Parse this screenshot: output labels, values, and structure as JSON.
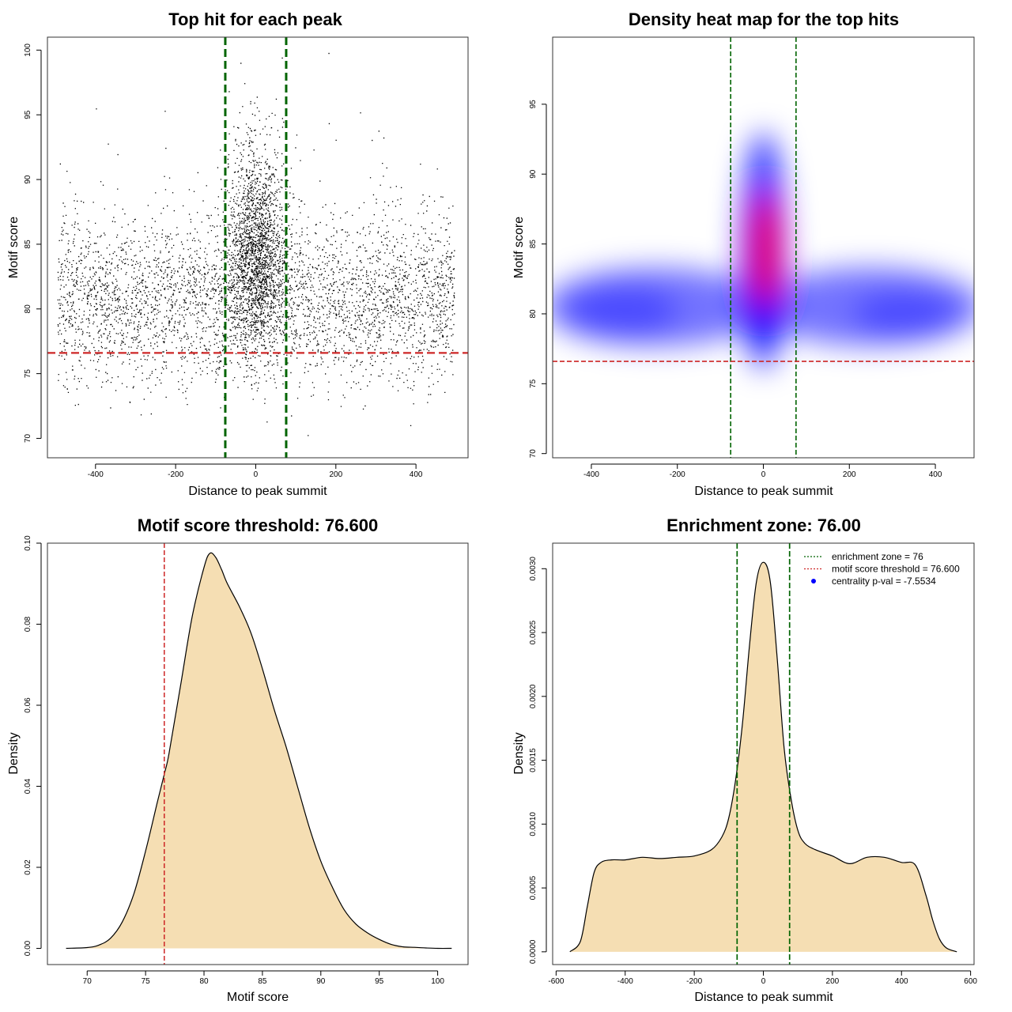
{
  "chart_data": [
    {
      "type": "scatter",
      "title": "Top hit for each peak",
      "xlabel": "Distance to peak summit",
      "ylabel": "Motif score",
      "xlim": [
        -520,
        530
      ],
      "ylim": [
        68.5,
        101
      ],
      "xticks": [
        -400,
        -200,
        0,
        200,
        400
      ],
      "yticks": [
        70,
        75,
        80,
        85,
        90,
        95,
        100
      ],
      "colors": {
        "points": "#000000",
        "zone_lines": "#006400",
        "threshold_line": "#cd2626"
      },
      "vlines": [
        -76,
        76
      ],
      "hline": 76.6,
      "grid": false
    },
    {
      "type": "heatmap",
      "title": "Density heat map for the top hits",
      "xlabel": "Distance to peak summit",
      "ylabel": "Motif score",
      "xlim": [
        -490,
        490
      ],
      "ylim": [
        69.7,
        99.8
      ],
      "xticks": [
        -400,
        -200,
        0,
        200,
        400
      ],
      "yticks": [
        70,
        75,
        80,
        85,
        90,
        95
      ],
      "colors": {
        "low": "#ffffff",
        "mid": "#0000ff",
        "high": "#ff0000",
        "zone_lines": "#006400",
        "threshold_line": "#cd2626"
      },
      "vlines": [
        -76,
        76
      ],
      "hline": 76.6,
      "grid": false
    },
    {
      "type": "area",
      "title": "Motif score threshold: 76.600",
      "xlabel": "Motif score",
      "ylabel": "Density",
      "xlim": [
        66.6,
        102.6
      ],
      "ylim": [
        -0.004,
        0.1
      ],
      "xticks": [
        70,
        75,
        80,
        85,
        90,
        95,
        100
      ],
      "yticks": [
        "0.00",
        "0.02",
        "0.04",
        "0.06",
        "0.08",
        "0.10"
      ],
      "x": [
        68.2,
        70,
        71,
        72,
        73,
        74,
        75,
        76,
        76.6,
        77,
        78,
        79,
        80,
        80.5,
        81,
        81.5,
        82,
        83,
        84,
        85,
        86,
        87,
        88,
        89,
        90,
        91,
        92,
        93,
        94,
        95,
        96,
        97,
        98,
        99,
        100,
        101.2
      ],
      "y": [
        0.0,
        0.0002,
        0.0008,
        0.0025,
        0.0065,
        0.0135,
        0.024,
        0.036,
        0.043,
        0.048,
        0.065,
        0.082,
        0.094,
        0.0975,
        0.0965,
        0.0935,
        0.09,
        0.0845,
        0.078,
        0.069,
        0.059,
        0.05,
        0.04,
        0.03,
        0.0215,
        0.015,
        0.0095,
        0.006,
        0.0038,
        0.0022,
        0.001,
        0.0004,
        0.00025,
        0.0001,
        0.0,
        0.0
      ],
      "vlines": [
        76.6
      ],
      "colors": {
        "fill": "#f5deb3",
        "line": "#000000",
        "threshold_line": "#cd2626"
      },
      "grid": false
    },
    {
      "type": "area",
      "title": "Enrichment zone: 76.00",
      "xlabel": "Distance to peak summit",
      "ylabel": "Density",
      "xlim": [
        -610,
        610
      ],
      "ylim": [
        -0.0001,
        0.0032
      ],
      "xticks": [
        -600,
        -400,
        -200,
        0,
        200,
        400,
        600
      ],
      "yticks": [
        "0.0000",
        "0.0005",
        "0.0010",
        "0.0015",
        "0.0020",
        "0.0025",
        "0.0030"
      ],
      "x": [
        -560,
        -530,
        -510,
        -490,
        -470,
        -440,
        -400,
        -350,
        -300,
        -250,
        -200,
        -150,
        -120,
        -100,
        -80,
        -60,
        -40,
        -20,
        0,
        20,
        40,
        60,
        80,
        100,
        120,
        150,
        200,
        250,
        300,
        350,
        400,
        440,
        470,
        490,
        510,
        530,
        560
      ],
      "y": [
        0.0,
        8e-05,
        0.00035,
        0.00062,
        0.0007,
        0.00072,
        0.00072,
        0.00074,
        0.00073,
        0.00074,
        0.00075,
        0.0008,
        0.0009,
        0.00105,
        0.00135,
        0.0018,
        0.0024,
        0.0029,
        0.00305,
        0.0029,
        0.0023,
        0.0016,
        0.0012,
        0.00095,
        0.00085,
        0.0008,
        0.00075,
        0.00069,
        0.00074,
        0.00074,
        0.0007,
        0.00068,
        0.00045,
        0.00025,
        0.0001,
        3e-05,
        0.0
      ],
      "vlines": [
        -76,
        76
      ],
      "colors": {
        "fill": "#f5deb3",
        "line": "#000000",
        "zone_lines": "#006400"
      },
      "legend": {
        "placement": "top-right",
        "entries": [
          {
            "label": "enrichment zone = 76",
            "color": "#006400",
            "symbol": "dotted-line"
          },
          {
            "label": "motif score threshold = 76.600",
            "color": "#cd2626",
            "symbol": "dotted-line"
          },
          {
            "label": "centrality p-val = -7.5534",
            "color": "#0000ff",
            "symbol": "dot"
          }
        ]
      },
      "grid": false
    }
  ]
}
